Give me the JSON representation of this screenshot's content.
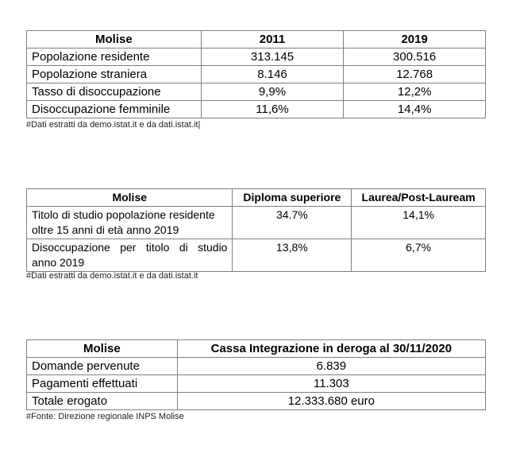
{
  "table1": {
    "headers": [
      "Molise",
      "2011",
      "2019"
    ],
    "rows": [
      [
        "Popolazione residente",
        "313.145",
        "300.516"
      ],
      [
        "Popolazione straniera",
        "8.146",
        "12.768"
      ],
      [
        "Tasso di disoccupazione",
        "9,9%",
        "12,2%"
      ],
      [
        "Disoccupazione femminile",
        "11,6%",
        "14,4%"
      ]
    ],
    "note": "#Dati estratti da demo.istat.it e da dati.istat.it|"
  },
  "table2": {
    "headers": [
      "Molise",
      "Diploma superiore",
      "Laurea/Post-Lauream"
    ],
    "rows": [
      [
        "Titolo di studio popolazione residente oltre 15 anni di età anno 2019",
        "34.7%",
        "14,1%"
      ],
      [
        "Disoccupazione per titolo di studio anno 2019",
        "13,8%",
        "6,7%"
      ]
    ],
    "note": "#Dati estratti da demo.istat.it e da dati.istat.it"
  },
  "table3": {
    "headers": [
      "Molise",
      "Cassa Integrazione in deroga al 30/11/2020"
    ],
    "rows": [
      [
        "Domande pervenute",
        "6.839"
      ],
      [
        "Pagamenti effettuati",
        "11.303"
      ],
      [
        "Totale erogato",
        "12.333.680 euro"
      ]
    ],
    "note": "#Fonte: Direzione regionale INPS Molise"
  }
}
